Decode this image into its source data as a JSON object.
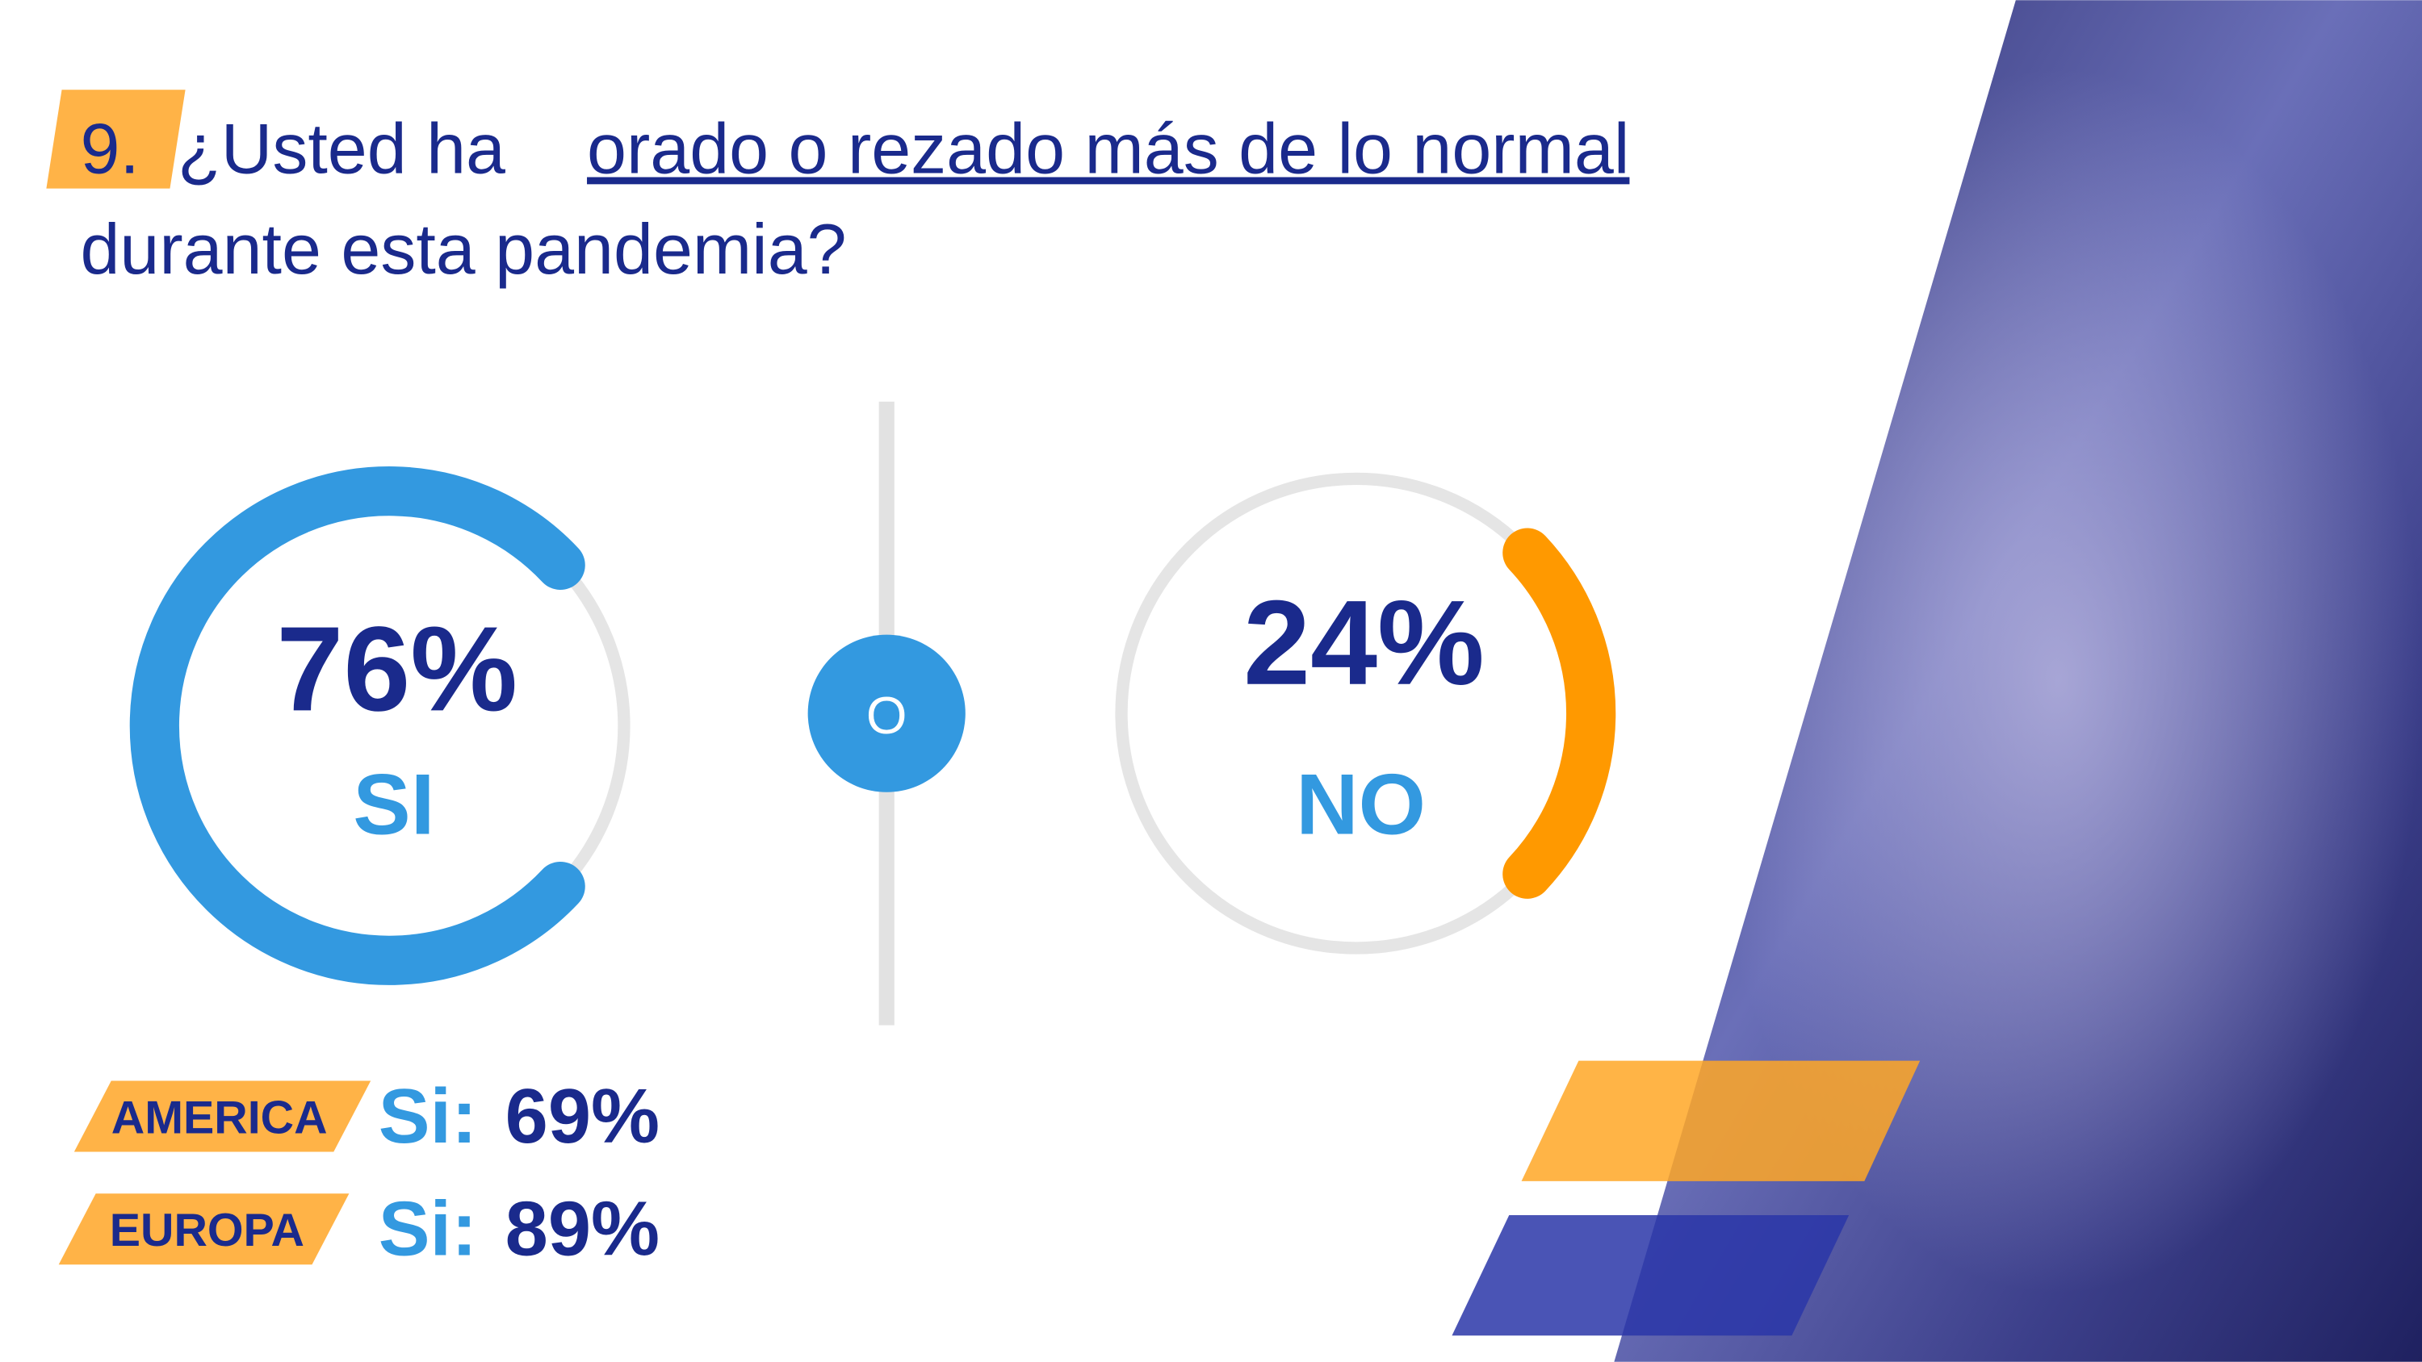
{
  "question": {
    "number": "9.",
    "text_before": "¿Usted ha",
    "underlined": "orado o rezado más de lo normal",
    "text_after": "durante esta pandemia?"
  },
  "chart_data": [
    {
      "type": "gauge",
      "value": 76,
      "value_label": "76%",
      "label": "SI",
      "color": "#3399e0"
    },
    {
      "type": "gauge",
      "value": 24,
      "value_label": "24%",
      "label": "NO",
      "color": "#ff9900"
    }
  ],
  "separator": "O",
  "regions": [
    {
      "name": "AMERICA",
      "label": "Si:",
      "value": "69%"
    },
    {
      "name": "EUROPA",
      "label": "Si:",
      "value": "89%"
    }
  ]
}
